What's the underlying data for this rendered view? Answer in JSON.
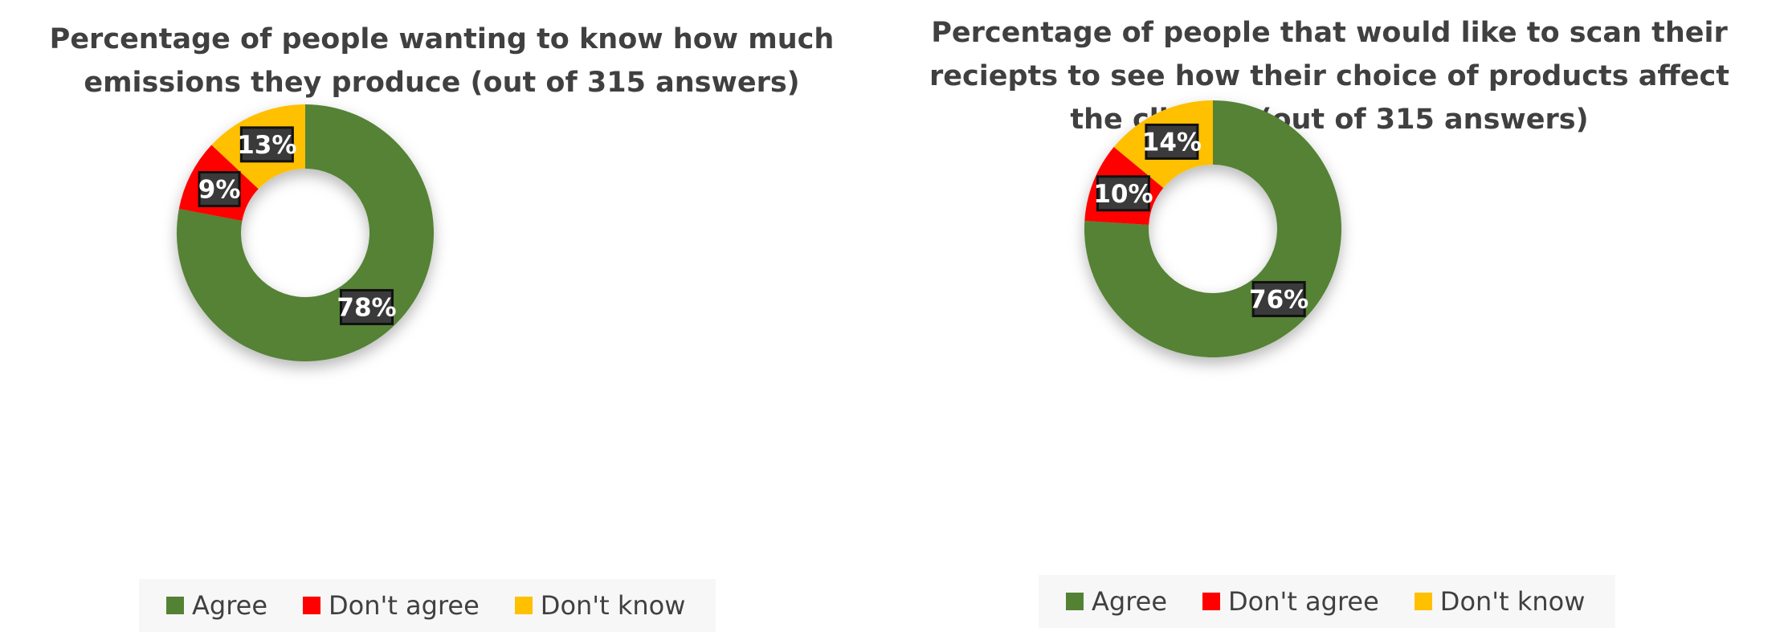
{
  "chart_data": [
    {
      "type": "pie",
      "title": "Percentage of people wanting to know how much emissions they produce (out of 315 answers)",
      "title_lines": [
        "Percentage of people wanting to know how much",
        "emissions they produce (out of 315 answers)"
      ],
      "categories": [
        "Agree",
        "Don't agree",
        "Don't know"
      ],
      "values": [
        78,
        9,
        13
      ],
      "data_labels": [
        "78%",
        "9%",
        "13%"
      ],
      "colors": [
        "#548235",
        "#ff0000",
        "#ffc000"
      ],
      "hole": 0.5,
      "start_angle_deg": 0,
      "legend_position": "bottom"
    },
    {
      "type": "pie",
      "title": "Percentage of people that would like to scan their reciepts to see how their choice of products affect the climate (out of 315 answers)",
      "title_lines": [
        "Percentage of people that would like to scan their",
        "reciepts to see how their choice of products affect",
        "the climate (out of 315 answers)"
      ],
      "categories": [
        "Agree",
        "Don't agree",
        "Don't know"
      ],
      "values": [
        76,
        10,
        14
      ],
      "data_labels": [
        "76%",
        "10%",
        "14%"
      ],
      "colors": [
        "#548235",
        "#ff0000",
        "#ffc000"
      ],
      "hole": 0.5,
      "start_angle_deg": 0,
      "legend_position": "bottom"
    }
  ]
}
